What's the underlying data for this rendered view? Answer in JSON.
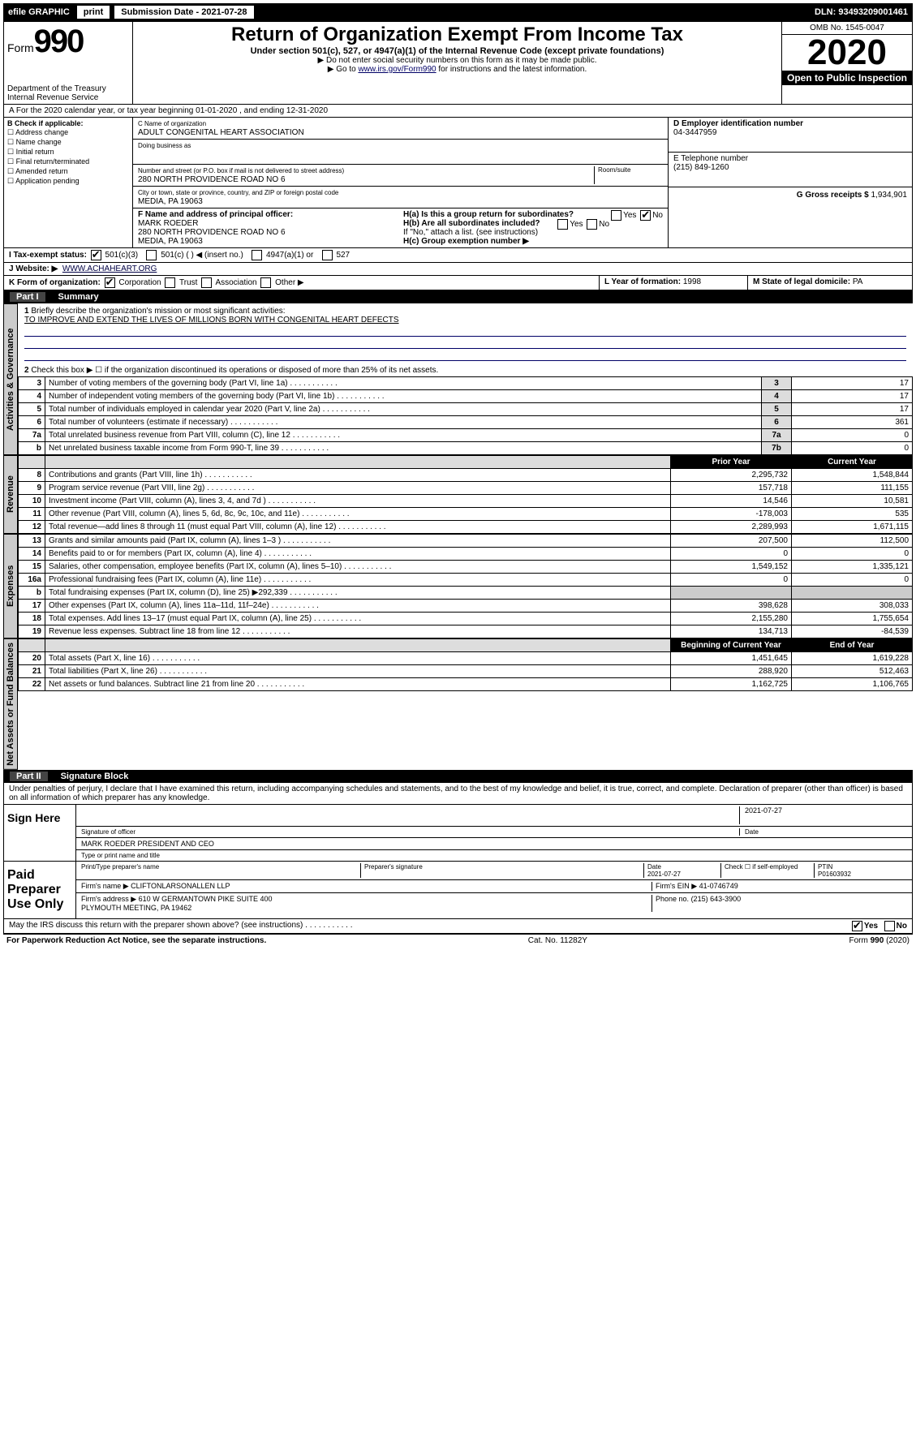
{
  "topbar": {
    "efile": "efile GRAPHIC",
    "print": "print",
    "subdate_lbl": "Submission Date - 2021-07-28",
    "dln": "DLN: 93493209001461"
  },
  "header": {
    "form_word": "Form",
    "form_no": "990",
    "dept": "Department of the Treasury\nInternal Revenue Service",
    "title": "Return of Organization Exempt From Income Tax",
    "sub1": "Under section 501(c), 527, or 4947(a)(1) of the Internal Revenue Code (except private foundations)",
    "sub2": "▶ Do not enter social security numbers on this form as it may be made public.",
    "sub3_pre": "▶ Go to ",
    "sub3_link": "www.irs.gov/Form990",
    "sub3_post": " for instructions and the latest information.",
    "omb": "OMB No. 1545-0047",
    "year": "2020",
    "open": "Open to Public Inspection"
  },
  "row_a": "A For the 2020 calendar year, or tax year beginning 01-01-2020   , and ending 12-31-2020",
  "box_b": {
    "title": "B Check if applicable:",
    "items": [
      "Address change",
      "Name change",
      "Initial return",
      "Final return/terminated",
      "Amended return",
      "Application pending"
    ]
  },
  "box_c": {
    "c_lbl": "C Name of organization",
    "c_val": "ADULT CONGENITAL HEART ASSOCIATION",
    "dba": "Doing business as",
    "addr_lbl": "Number and street (or P.O. box if mail is not delivered to street address)",
    "room_lbl": "Room/suite",
    "addr_val": "280 NORTH PROVIDENCE ROAD NO 6",
    "city_lbl": "City or town, state or province, country, and ZIP or foreign postal code",
    "city_val": "MEDIA, PA  19063",
    "f_lbl": "F Name and address of principal officer:",
    "f_name": "MARK ROEDER",
    "f_addr": "280 NORTH PROVIDENCE ROAD NO 6\nMEDIA, PA  19063"
  },
  "box_right": {
    "d_lbl": "D Employer identification number",
    "d_val": "04-3447959",
    "e_lbl": "E Telephone number",
    "e_val": "(215) 849-1260",
    "g_lbl": "G Gross receipts $",
    "g_val": "1,934,901",
    "ha": "H(a)  Is this a group return for subordinates?",
    "hb": "H(b)  Are all subordinates included?",
    "hb_note": "If \"No,\" attach a list. (see instructions)",
    "hc": "H(c)  Group exemption number ▶",
    "yes": "Yes",
    "no": "No"
  },
  "row_i": {
    "lbl": "I    Tax-exempt status:",
    "opts": [
      "501(c)(3)",
      "501(c) (   ) ◀ (insert no.)",
      "4947(a)(1) or",
      "527"
    ]
  },
  "row_j": {
    "lbl": "J    Website: ▶",
    "val": "WWW.ACHAHEART.ORG"
  },
  "row_k": {
    "lbl": "K Form of organization:",
    "opts": [
      "Corporation",
      "Trust",
      "Association",
      "Other ▶"
    ],
    "l_lbl": "L Year of formation:",
    "l_val": "1998",
    "m_lbl": "M State of legal domicile:",
    "m_val": "PA"
  },
  "part1": {
    "no": "Part I",
    "title": "Summary"
  },
  "vtabs": {
    "gov": "Activities & Governance",
    "rev": "Revenue",
    "exp": "Expenses",
    "net": "Net Assets or Fund Balances"
  },
  "summary": {
    "l1": "Briefly describe the organization's mission or most significant activities:",
    "l1_val": "TO IMPROVE AND EXTEND THE LIVES OF MILLIONS BORN WITH CONGENITAL HEART DEFECTS",
    "l2": "Check this box ▶ ☐  if the organization discontinued its operations or disposed of more than 25% of its net assets.",
    "rows_gov": [
      {
        "n": "3",
        "t": "Number of voting members of the governing body (Part VI, line 1a)",
        "box": "3",
        "v": "17"
      },
      {
        "n": "4",
        "t": "Number of independent voting members of the governing body (Part VI, line 1b)",
        "box": "4",
        "v": "17"
      },
      {
        "n": "5",
        "t": "Total number of individuals employed in calendar year 2020 (Part V, line 2a)",
        "box": "5",
        "v": "17"
      },
      {
        "n": "6",
        "t": "Total number of volunteers (estimate if necessary)",
        "box": "6",
        "v": "361"
      },
      {
        "n": "7a",
        "t": "Total unrelated business revenue from Part VIII, column (C), line 12",
        "box": "7a",
        "v": "0"
      },
      {
        "n": "b",
        "t": "Net unrelated business taxable income from Form 990-T, line 39",
        "box": "7b",
        "v": "0"
      }
    ],
    "hdr_prior": "Prior Year",
    "hdr_curr": "Current Year",
    "rows_rev": [
      {
        "n": "8",
        "t": "Contributions and grants (Part VIII, line 1h)",
        "p": "2,295,732",
        "c": "1,548,844"
      },
      {
        "n": "9",
        "t": "Program service revenue (Part VIII, line 2g)",
        "p": "157,718",
        "c": "111,155"
      },
      {
        "n": "10",
        "t": "Investment income (Part VIII, column (A), lines 3, 4, and 7d )",
        "p": "14,546",
        "c": "10,581"
      },
      {
        "n": "11",
        "t": "Other revenue (Part VIII, column (A), lines 5, 6d, 8c, 9c, 10c, and 11e)",
        "p": "-178,003",
        "c": "535"
      },
      {
        "n": "12",
        "t": "Total revenue—add lines 8 through 11 (must equal Part VIII, column (A), line 12)",
        "p": "2,289,993",
        "c": "1,671,115"
      }
    ],
    "rows_exp": [
      {
        "n": "13",
        "t": "Grants and similar amounts paid (Part IX, column (A), lines 1–3 )",
        "p": "207,500",
        "c": "112,500"
      },
      {
        "n": "14",
        "t": "Benefits paid to or for members (Part IX, column (A), line 4)",
        "p": "0",
        "c": "0"
      },
      {
        "n": "15",
        "t": "Salaries, other compensation, employee benefits (Part IX, column (A), lines 5–10)",
        "p": "1,549,152",
        "c": "1,335,121"
      },
      {
        "n": "16a",
        "t": "Professional fundraising fees (Part IX, column (A), line 11e)",
        "p": "0",
        "c": "0"
      },
      {
        "n": "b",
        "t": "Total fundraising expenses (Part IX, column (D), line 25) ▶292,339",
        "p": "",
        "c": ""
      },
      {
        "n": "17",
        "t": "Other expenses (Part IX, column (A), lines 11a–11d, 11f–24e)",
        "p": "398,628",
        "c": "308,033"
      },
      {
        "n": "18",
        "t": "Total expenses. Add lines 13–17 (must equal Part IX, column (A), line 25)",
        "p": "2,155,280",
        "c": "1,755,654"
      },
      {
        "n": "19",
        "t": "Revenue less expenses. Subtract line 18 from line 12",
        "p": "134,713",
        "c": "-84,539"
      }
    ],
    "hdr_beg": "Beginning of Current Year",
    "hdr_end": "End of Year",
    "rows_net": [
      {
        "n": "20",
        "t": "Total assets (Part X, line 16)",
        "p": "1,451,645",
        "c": "1,619,228"
      },
      {
        "n": "21",
        "t": "Total liabilities (Part X, line 26)",
        "p": "288,920",
        "c": "512,463"
      },
      {
        "n": "22",
        "t": "Net assets or fund balances. Subtract line 21 from line 20",
        "p": "1,162,725",
        "c": "1,106,765"
      }
    ]
  },
  "part2": {
    "no": "Part II",
    "title": "Signature Block"
  },
  "perjury": "Under penalties of perjury, I declare that I have examined this return, including accompanying schedules and statements, and to the best of my knowledge and belief, it is true, correct, and complete. Declaration of preparer (other than officer) is based on all information of which preparer has any knowledge.",
  "sign": {
    "here": "Sign Here",
    "sig_officer": "Signature of officer",
    "date1": "2021-07-27",
    "date_lbl": "Date",
    "name": "MARK ROEDER  PRESIDENT AND CEO",
    "name_lbl": "Type or print name and title"
  },
  "paid": {
    "lbl": "Paid Preparer Use Only",
    "h1": "Print/Type preparer's name",
    "h2": "Preparer's signature",
    "h3": "Date",
    "h4": "Check ☐ if self-employed",
    "h5": "PTIN",
    "date": "2021-07-27",
    "ptin": "P01603932",
    "firm_lbl": "Firm's name    ▶",
    "firm": "CLIFTONLARSONALLEN LLP",
    "ein_lbl": "Firm's EIN ▶",
    "ein": "41-0746749",
    "addr_lbl": "Firm's address ▶",
    "addr": "610 W GERMANTOWN PIKE SUITE 400\nPLYMOUTH MEETING, PA  19462",
    "phone_lbl": "Phone no.",
    "phone": "(215) 643-3900"
  },
  "discuss": "May the IRS discuss this return with the preparer shown above? (see instructions)",
  "footer": {
    "pra": "For Paperwork Reduction Act Notice, see the separate instructions.",
    "cat": "Cat. No. 11282Y",
    "form": "Form 990 (2020)"
  }
}
